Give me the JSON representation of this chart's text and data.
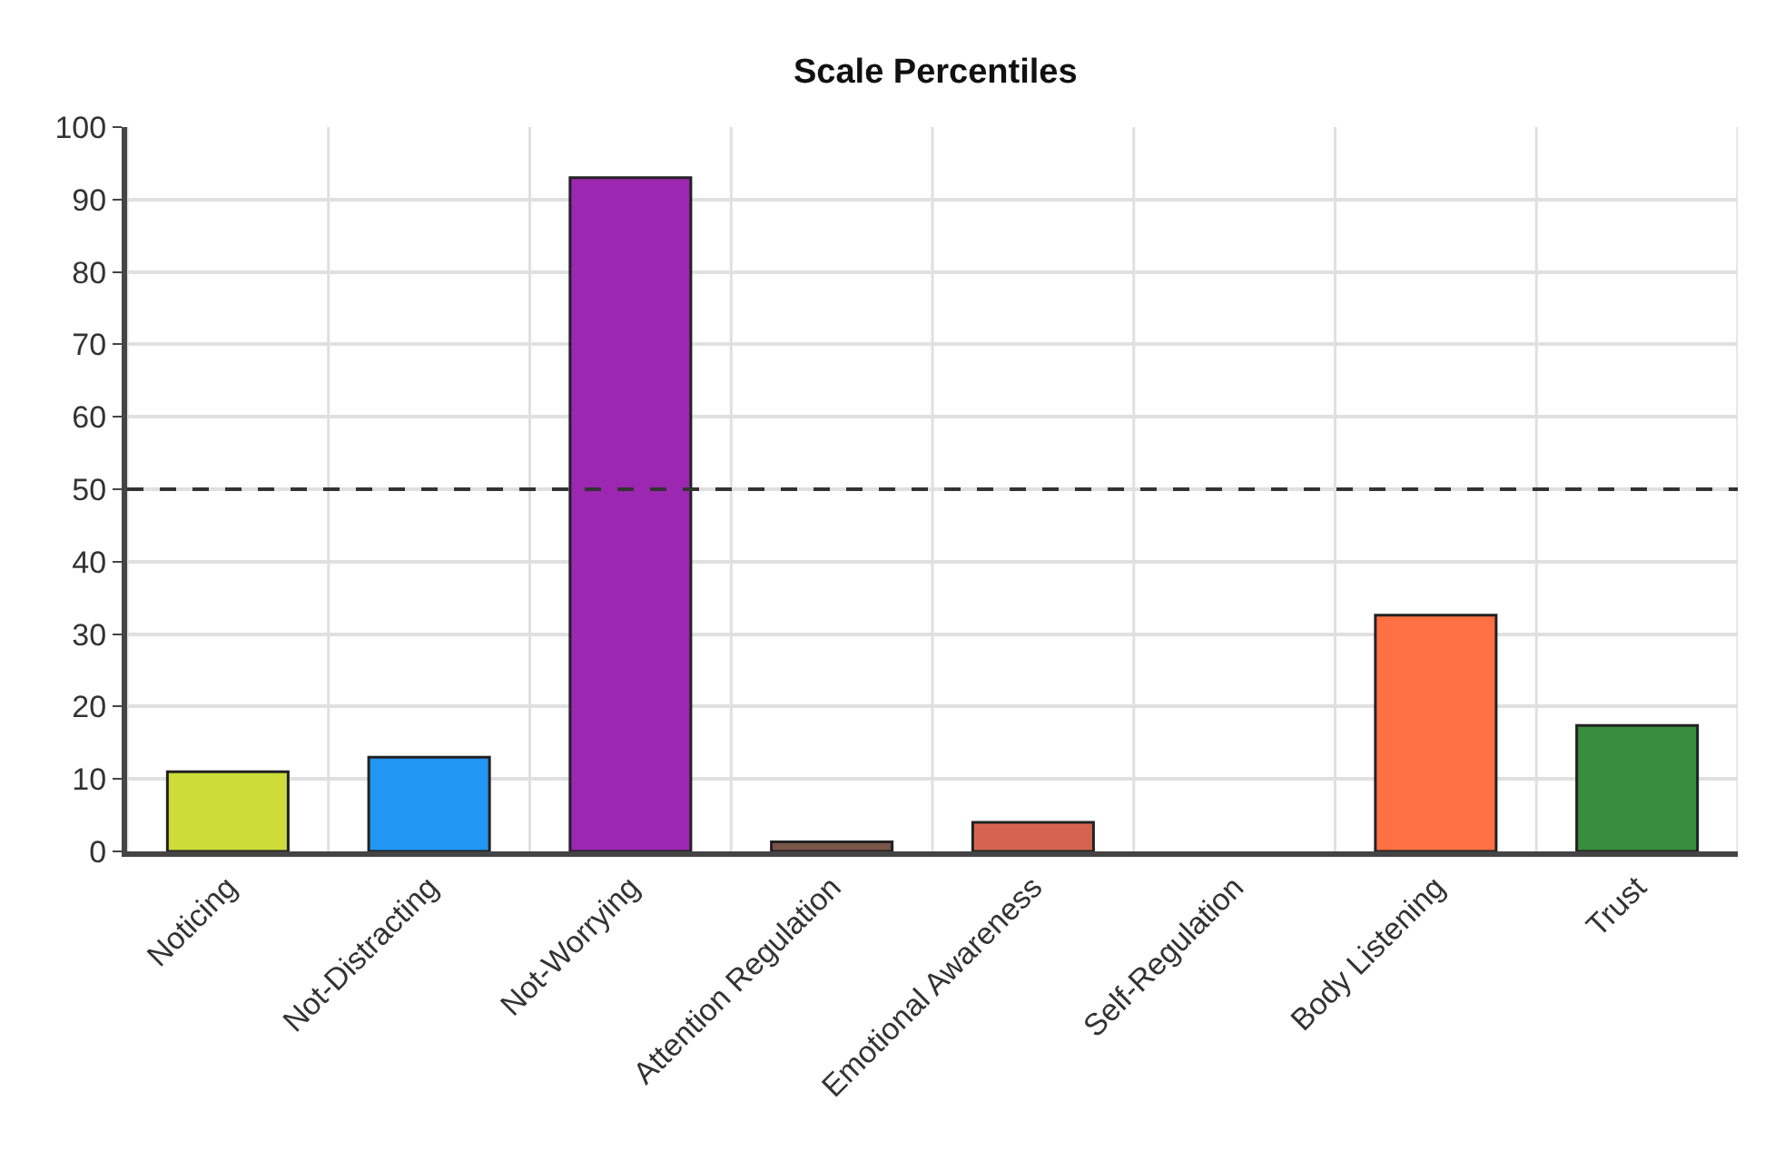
{
  "chart_data": {
    "type": "bar",
    "title": "Scale Percentiles",
    "categories": [
      "Noticing",
      "Not-Distracting",
      "Not-Worrying",
      "Attention Regulation",
      "Emotional Awareness",
      "Self-Regulation",
      "Body Listening",
      "Trust"
    ],
    "values": [
      11,
      13,
      93,
      1.3,
      4,
      0,
      32.6,
      17.4
    ],
    "colors": [
      "#cddc39",
      "#2196f3",
      "#9c27b0",
      "#795548",
      "#d4644f",
      null,
      "#ff7043",
      "#388e3c"
    ],
    "ylim": [
      0,
      100
    ],
    "yticks": [
      0,
      10,
      20,
      30,
      40,
      50,
      60,
      70,
      80,
      90,
      100
    ],
    "grid": true,
    "ref_lines": [
      {
        "axis": "y",
        "value": 50,
        "label": null,
        "color": "#333333",
        "line_style": "dashed"
      }
    ]
  }
}
